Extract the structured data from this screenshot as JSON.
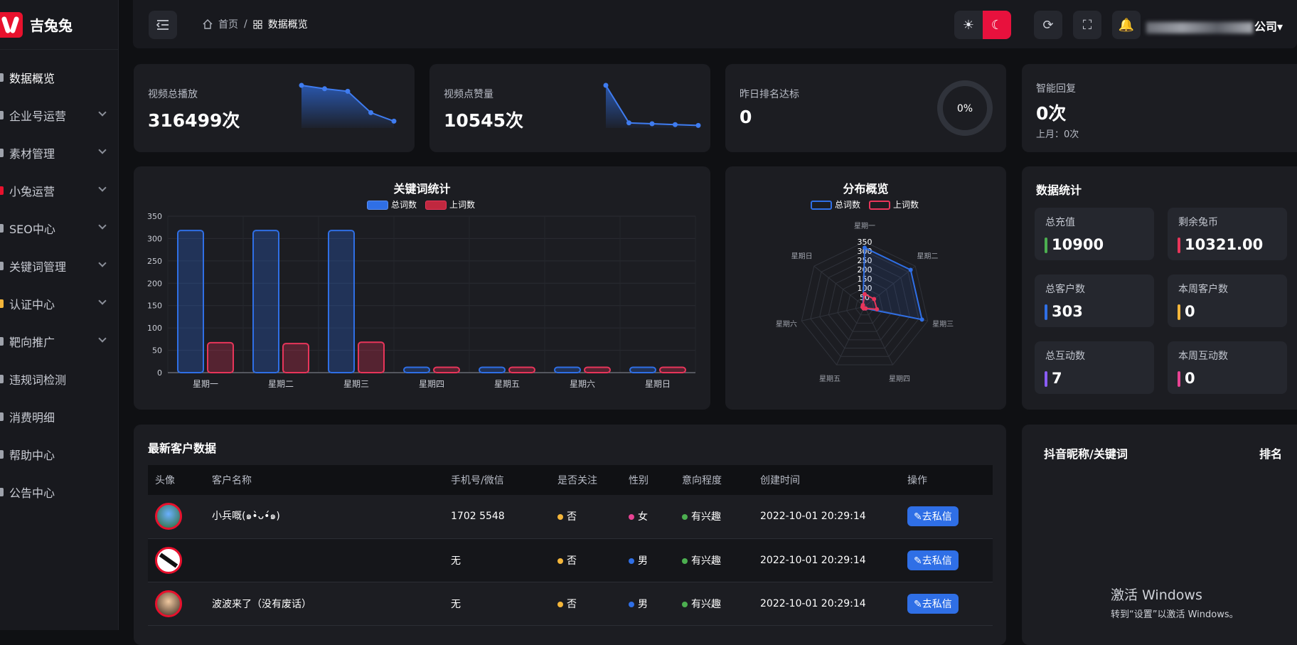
{
  "app": {
    "name": "吉兔兔"
  },
  "sidebar": {
    "items": [
      {
        "label": "数据概览",
        "icon": "dashboard-icon",
        "active": true,
        "has_children": false
      },
      {
        "label": "企业号运营",
        "icon": "enterprise-icon",
        "has_children": true
      },
      {
        "label": "素材管理",
        "icon": "video-icon",
        "has_children": true
      },
      {
        "label": "小兔运营",
        "icon": "rabbit-icon",
        "has_children": true
      },
      {
        "label": "SEO中心",
        "icon": "seo-icon",
        "has_children": true
      },
      {
        "label": "关键词管理",
        "icon": "keyword-icon",
        "has_children": true
      },
      {
        "label": "认证中心",
        "icon": "badge-icon",
        "has_children": true
      },
      {
        "label": "靶向推广",
        "icon": "target-icon",
        "has_children": true
      },
      {
        "label": "违规词检测",
        "icon": "detect-icon",
        "has_children": false
      },
      {
        "label": "消费明细",
        "icon": "receipt-icon",
        "has_children": false
      },
      {
        "label": "帮助中心",
        "icon": "help-icon",
        "has_children": false
      },
      {
        "label": "公告中心",
        "icon": "announce-icon",
        "has_children": false
      }
    ]
  },
  "header": {
    "breadcrumb": {
      "home": "首页",
      "separator": "/",
      "current": "数据概览"
    },
    "user_suffix": "公司"
  },
  "stats": {
    "views": {
      "label": "视频总播放",
      "value": "316499次",
      "trend": [
        5,
        4.6,
        4.3,
        1.8,
        0.8
      ]
    },
    "likes": {
      "label": "视频点赞量",
      "value": "10545次",
      "trend": [
        5,
        0.6,
        0.5,
        0.4,
        0.3
      ]
    },
    "rank": {
      "label": "昨日排名达标",
      "value": "0",
      "percent_text": "0%",
      "percent": 0
    },
    "reply": {
      "label": "智能回复",
      "value": "0次",
      "sub": "上月：0次"
    }
  },
  "keyword_chart": {
    "title": "关键词统计",
    "legend": [
      "总词数",
      "上词数"
    ],
    "colors": [
      "#2f6fe6",
      "#e8355a"
    ],
    "chart_data": {
      "type": "bar",
      "categories": [
        "星期一",
        "星期二",
        "星期三",
        "星期四",
        "星期五",
        "星期六",
        "星期日"
      ],
      "series": [
        {
          "name": "总词数",
          "values": [
            318,
            318,
            318,
            12,
            12,
            12,
            12
          ]
        },
        {
          "name": "上词数",
          "values": [
            67,
            65,
            68,
            12,
            12,
            12,
            12
          ]
        }
      ],
      "ylim": [
        0,
        350
      ],
      "yticks": [
        0,
        50,
        100,
        150,
        200,
        250,
        300,
        350
      ]
    }
  },
  "radar_chart": {
    "title": "分布概览",
    "legend": [
      "总词数",
      "上词数"
    ],
    "colors": [
      "#2f6fe6",
      "#e8355a"
    ],
    "chart_data": {
      "type": "radar",
      "categories": [
        "星期一",
        "星期二",
        "星期三",
        "星期四",
        "星期五",
        "星期六",
        "星期日"
      ],
      "series": [
        {
          "name": "总词数",
          "values": [
            318,
            318,
            318,
            12,
            12,
            12,
            12
          ]
        },
        {
          "name": "上词数",
          "values": [
            67,
            65,
            68,
            12,
            12,
            12,
            12
          ]
        }
      ],
      "rlim": [
        0,
        350
      ],
      "rticks": [
        50,
        100,
        150,
        200,
        250,
        300,
        350
      ]
    }
  },
  "data_stats": {
    "title": "数据统计",
    "items": [
      {
        "label": "总充值",
        "value": "10900",
        "color": "#4caf50"
      },
      {
        "label": "剩余兔币",
        "value": "10321.00",
        "color": "#e8355a"
      },
      {
        "label": "总客户数",
        "value": "303",
        "color": "#2f6fe6"
      },
      {
        "label": "本周客户数",
        "value": "0",
        "color": "#f4b63a"
      },
      {
        "label": "总互动数",
        "value": "7",
        "color": "#8a5cf6"
      },
      {
        "label": "本周互动数",
        "value": "0",
        "color": "#e84393"
      }
    ]
  },
  "customers": {
    "title": "最新客户数据",
    "columns": [
      "头像",
      "客户名称",
      "手机号/微信",
      "是否关注",
      "性别",
      "意向程度",
      "创建时间",
      "操作"
    ],
    "rows": [
      {
        "name": "小兵嘅(๑•̀ᴗ•́๑)",
        "phone": "1702    5548",
        "follow": "否",
        "gender": "女",
        "intent": "有兴趣",
        "created": "2022-10-01 20:29:14",
        "action": "去私信"
      },
      {
        "name": "",
        "phone": "无",
        "follow": "否",
        "gender": "男",
        "intent": "有兴趣",
        "created": "2022-10-01 20:29:14",
        "action": "去私信"
      },
      {
        "name": "波波来了（没有废话）",
        "phone": "无",
        "follow": "否",
        "gender": "男",
        "intent": "有兴趣",
        "created": "2022-10-01 20:29:14",
        "action": "去私信"
      }
    ]
  },
  "ranking": {
    "col1": "抖音昵称/关键词",
    "col2": "排名"
  },
  "watermark": {
    "line1": "激活 Windows",
    "line2": "转到“设置”以激活 Windows。"
  }
}
